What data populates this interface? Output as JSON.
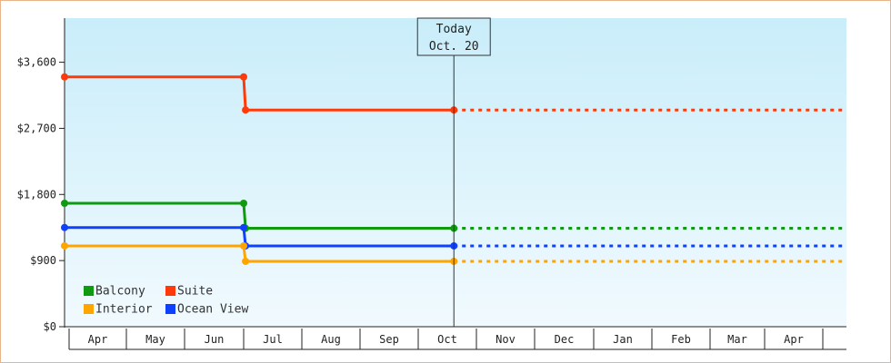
{
  "chart_data": {
    "type": "line",
    "title": "",
    "xlabel": "",
    "ylabel": "",
    "x_ticks": [
      "Apr",
      "May",
      "Jun",
      "Jul",
      "Aug",
      "Sep",
      "Oct",
      "Nov",
      "Dec",
      "Jan",
      "Feb",
      "Mar",
      "Apr"
    ],
    "y_ticks": [
      "$0",
      "$900",
      "$1,800",
      "$2,700",
      "$3,600"
    ],
    "ylim": [
      0,
      4200
    ],
    "x_range": [
      "Apr",
      "Apr"
    ],
    "today_marker": {
      "line1": "Today",
      "line2": "Oct. 20",
      "x": "Oct 20"
    },
    "step_style": "step-after",
    "future_style": "dotted",
    "series": [
      {
        "name": "Suite",
        "color": "#ff3a0a",
        "points": [
          [
            "Apr 1",
            3400
          ],
          [
            "Jul 1",
            3400
          ],
          [
            "Jul 2",
            2950
          ],
          [
            "Oct 20",
            2950
          ]
        ],
        "projected_through": "Apr"
      },
      {
        "name": "Balcony",
        "color": "#109a10",
        "points": [
          [
            "Apr 1",
            1680
          ],
          [
            "Jul 1",
            1680
          ],
          [
            "Jul 2",
            1340
          ],
          [
            "Oct 20",
            1340
          ]
        ],
        "projected_through": "Apr"
      },
      {
        "name": "Ocean View",
        "color": "#1040ff",
        "points": [
          [
            "Apr 1",
            1350
          ],
          [
            "Jul 1",
            1350
          ],
          [
            "Jul 2",
            1100
          ],
          [
            "Oct 20",
            1100
          ]
        ],
        "projected_through": "Apr"
      },
      {
        "name": "Interior",
        "color": "#ffa500",
        "points": [
          [
            "Apr 1",
            1100
          ],
          [
            "Jul 1",
            1100
          ],
          [
            "Jul 2",
            890
          ],
          [
            "Oct 20",
            890
          ]
        ],
        "projected_through": "Apr"
      }
    ],
    "legend": {
      "placement": "bottom-left",
      "entries": [
        {
          "name": "Balcony",
          "color": "#109a10"
        },
        {
          "name": "Suite",
          "color": "#ff3a0a"
        },
        {
          "name": "Interior",
          "color": "#ffa500"
        },
        {
          "name": "Ocean View",
          "color": "#1040ff"
        }
      ]
    },
    "grid": false,
    "background": {
      "top": "#c9edfa",
      "bottom": "#f1fafe"
    }
  }
}
